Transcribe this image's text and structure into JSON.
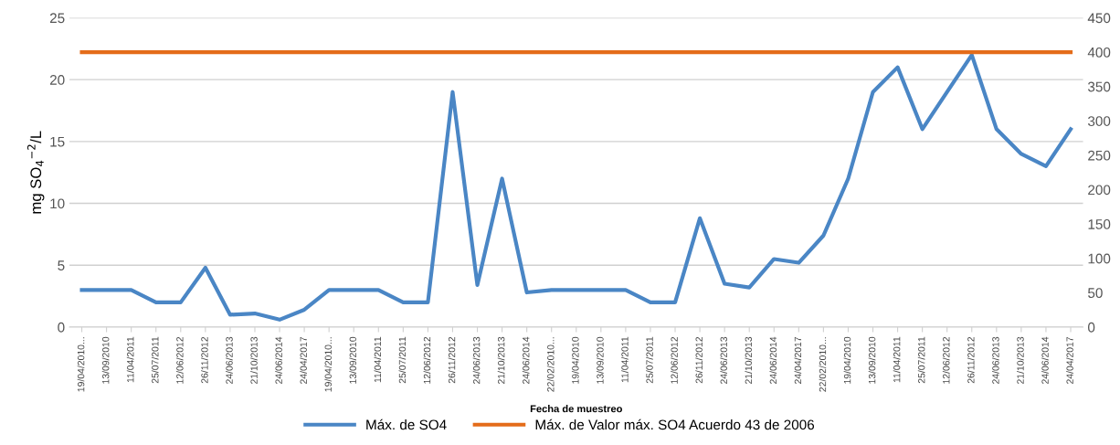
{
  "chart_data": {
    "type": "line",
    "xlabel": "Fecha de muestreo",
    "ylabel": "mg SO$_{4}$$^{−2}$/L",
    "categories": [
      "19/04/2010...",
      "13/09/2010",
      "11/04/2011",
      "25/07/2011",
      "12/06/2012",
      "26/11/2012",
      "24/06/2013",
      "21/10/2013",
      "24/06/2014",
      "24/04/2017",
      "19/04/2010...",
      "13/09/2010",
      "11/04/2011",
      "25/07/2011",
      "12/06/2012",
      "26/11/2012",
      "24/06/2013",
      "21/10/2013",
      "24/06/2014",
      "22/02/2010...",
      "19/04/2010",
      "13/09/2010",
      "11/04/2011",
      "25/07/2011",
      "12/06/2012",
      "26/11/2012",
      "24/06/2013",
      "21/10/2013",
      "24/06/2014",
      "24/04/2017",
      "22/02/2010...",
      "19/04/2010",
      "13/09/2010",
      "11/04/2011",
      "25/07/2011",
      "12/06/2012",
      "26/11/2012",
      "24/06/2013",
      "21/10/2013",
      "24/06/2014",
      "24/04/2017"
    ],
    "series": [
      {
        "name": "Máx. de SO4",
        "color": "#4a86c5",
        "values": [
          3,
          3,
          3,
          2,
          2,
          4.8,
          1,
          1.1,
          0.6,
          1.4,
          3,
          3,
          3,
          2,
          2,
          19,
          3.4,
          12,
          2.8,
          3,
          3,
          3,
          3,
          2,
          2,
          8.8,
          3.5,
          3.2,
          5.5,
          5.2,
          7.4,
          12,
          19,
          21,
          16,
          19,
          22,
          16,
          14,
          13,
          16
        ]
      },
      {
        "name": "Máx. de Valor máx. SO4 Acuerdo 43 de 2006",
        "color": "#e46c1a",
        "axis": "y2",
        "values": [
          400,
          400,
          400,
          400,
          400,
          400,
          400,
          400,
          400,
          400,
          400,
          400,
          400,
          400,
          400,
          400,
          400,
          400,
          400,
          400,
          400,
          400,
          400,
          400,
          400,
          400,
          400,
          400,
          400,
          400,
          400,
          400,
          400,
          400,
          400,
          400,
          400,
          400,
          400,
          400,
          400
        ]
      }
    ],
    "ylim": [
      0,
      25
    ],
    "yticks": [
      0,
      5,
      10,
      15,
      20,
      25
    ],
    "y2lim": [
      0,
      450
    ],
    "y2ticks": [
      0,
      50,
      100,
      150,
      200,
      250,
      300,
      350,
      400,
      450
    ],
    "grid": "y",
    "legend": "bottom",
    "marker": "none",
    "line_style": "solid"
  }
}
